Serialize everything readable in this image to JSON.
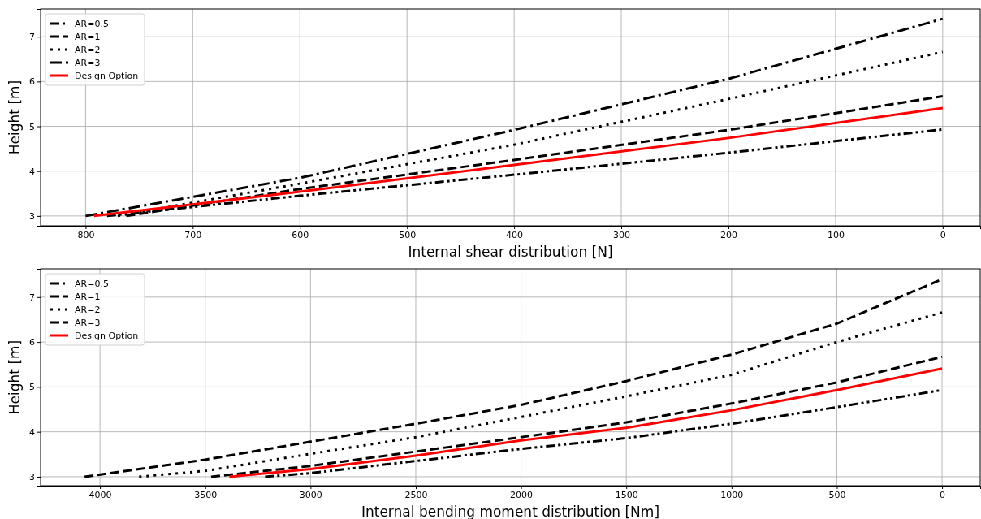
{
  "chart_data": [
    {
      "type": "line",
      "xlabel": "Internal shear distribution [N]",
      "ylabel": "Height [m]",
      "xlim": [
        842,
        -35
      ],
      "ylim": [
        2.78,
        7.62
      ],
      "xticks": [
        800,
        700,
        600,
        500,
        400,
        300,
        200,
        100,
        0
      ],
      "yticks": [
        3,
        4,
        5,
        6,
        7
      ],
      "grid": true,
      "legend": "top left",
      "series": [
        {
          "name": "AR=0.5",
          "color": "#000000",
          "line_style": "dashdotdot",
          "x": [
            780,
            600,
            400,
            200,
            0
          ],
          "values": [
            3,
            3.45,
            3.92,
            4.41,
            4.93
          ]
        },
        {
          "name": "AR=1",
          "color": "#000000",
          "line_style": "dashed",
          "x": [
            762,
            600,
            400,
            200,
            0
          ],
          "values": [
            3,
            3.6,
            4.25,
            4.92,
            5.67
          ]
        },
        {
          "name": "AR=2",
          "color": "#000000",
          "line_style": "dotted",
          "x": [
            770,
            600,
            400,
            200,
            0
          ],
          "values": [
            3,
            3.72,
            4.59,
            5.61,
            6.66
          ]
        },
        {
          "name": "AR=3",
          "color": "#000000",
          "line_style": "dashdot",
          "x": [
            800,
            600,
            400,
            200,
            0
          ],
          "values": [
            3,
            3.85,
            4.92,
            6.06,
            7.4
          ]
        },
        {
          "name": "Design Option",
          "color": "#ff0000",
          "line_style": "solid",
          "x": [
            792,
            600,
            400,
            200,
            0
          ],
          "values": [
            3,
            3.54,
            4.14,
            4.74,
            5.41
          ]
        }
      ]
    },
    {
      "type": "line",
      "xlabel": "Internal bending moment distribution [Nm]",
      "ylabel": "Height [m]",
      "xlim": [
        4282,
        -181
      ],
      "ylim": [
        2.8,
        7.63
      ],
      "xticks": [
        4000,
        3500,
        3000,
        2500,
        2000,
        1500,
        1000,
        500,
        0
      ],
      "yticks": [
        3,
        4,
        5,
        6,
        7
      ],
      "grid": true,
      "legend": "top left",
      "series": [
        {
          "name": "AR=0.5",
          "color": "#000000",
          "line_style": "dashdotdot",
          "x": [
            3216,
            3000,
            2500,
            2000,
            1500,
            1000,
            500,
            0
          ],
          "values": [
            3,
            3.08,
            3.35,
            3.62,
            3.86,
            4.18,
            4.55,
            4.93
          ]
        },
        {
          "name": "AR=1",
          "color": "#000000",
          "line_style": "dashed",
          "x": [
            3472,
            3000,
            2500,
            2000,
            1500,
            1000,
            500,
            0
          ],
          "values": [
            3,
            3.24,
            3.56,
            3.88,
            4.21,
            4.63,
            5.1,
            5.67
          ]
        },
        {
          "name": "AR=2",
          "color": "#000000",
          "line_style": "dotted",
          "x": [
            3814,
            3500,
            3000,
            2500,
            2000,
            1500,
            1000,
            500,
            0
          ],
          "values": [
            3,
            3.13,
            3.51,
            3.88,
            4.33,
            4.79,
            5.27,
            6.0,
            6.66
          ]
        },
        {
          "name": "AR=3",
          "color": "#000000",
          "line_style": "dashed",
          "x": [
            4073,
            3500,
            3000,
            2500,
            2000,
            1500,
            1000,
            500,
            0
          ],
          "values": [
            3,
            3.38,
            3.78,
            4.18,
            4.6,
            5.13,
            5.72,
            6.41,
            7.4
          ]
        },
        {
          "name": "Design Option",
          "color": "#ff0000",
          "line_style": "solid",
          "x": [
            3386,
            3000,
            2500,
            2000,
            1500,
            1000,
            500,
            0
          ],
          "values": [
            3,
            3.17,
            3.47,
            3.81,
            4.09,
            4.48,
            4.93,
            5.41
          ]
        }
      ]
    }
  ]
}
